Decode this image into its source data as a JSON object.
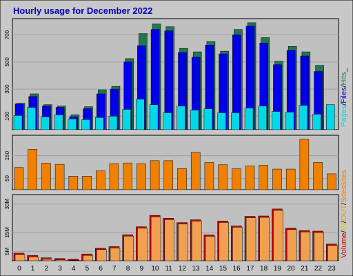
{
  "page": {
    "background": "#c8c8c8",
    "panel_background": "#c0c0c0"
  },
  "colors": {
    "title": "#0000c0",
    "pages": "#00d8e8",
    "files": "#0000e8",
    "hits": "#207850",
    "volume": "#d00000",
    "in": "#d0d000",
    "out": "#e0a000",
    "sites": "#f08000",
    "volume_fill": "#f0a050",
    "bar_outline": "#000000"
  },
  "chart_data": {
    "type": "bar",
    "title": "Hourly usage for December 2022",
    "x_categories": [
      "0",
      "1",
      "2",
      "3",
      "4",
      "5",
      "6",
      "7",
      "8",
      "9",
      "10",
      "11",
      "12",
      "13",
      "14",
      "15",
      "16",
      "17",
      "18",
      "19",
      "20",
      "21",
      "22",
      "23"
    ],
    "charts": [
      {
        "name": "hits-files-pages",
        "ylim": [
          0,
          820
        ],
        "yticks": [
          100,
          300,
          500,
          700
        ],
        "legend": [
          "Pages",
          "/",
          "Files",
          "/",
          "Hits",
          "_"
        ],
        "series": [
          {
            "name": "Hits",
            "values": [
              195,
              265,
              185,
              175,
              110,
              170,
              295,
              320,
              525,
              710,
              780,
              760,
              600,
              575,
              650,
              580,
              740,
              790,
              680,
              505,
              615,
              575,
              475,
              0
            ]
          },
          {
            "name": "Files",
            "values": [
              190,
              245,
              175,
              165,
              95,
              155,
              265,
              300,
              500,
              620,
              740,
              730,
              570,
              535,
              625,
              560,
              700,
              765,
              640,
              480,
              585,
              545,
              430,
              0
            ]
          },
          {
            "name": "Pages",
            "values": [
              105,
              165,
              95,
              110,
              80,
              75,
              90,
              100,
              150,
              225,
              185,
              125,
              175,
              145,
              155,
              125,
              125,
              160,
              175,
              135,
              130,
              180,
              115,
              185
            ]
          }
        ]
      },
      {
        "name": "sites",
        "ylim": [
          0,
          240
        ],
        "yticks": [
          50,
          150
        ],
        "legend": [
          "Sites"
        ],
        "series": [
          {
            "name": "Sites",
            "values": [
              98,
              178,
              117,
              112,
              60,
              60,
              83,
              115,
              118,
              115,
              128,
              128,
              93,
              165,
              120,
              110,
              92,
              105,
              108,
              91,
              91,
              222,
              120,
              70
            ]
          }
        ]
      },
      {
        "name": "volume",
        "ylim": [
          0,
          35
        ],
        "yticks": [
          5,
          15,
          30
        ],
        "ytick_labels": [
          "5M",
          "15M",
          "30M"
        ],
        "legend": [
          "Volume",
          "/",
          "IN",
          "/",
          "OUT",
          "/",
          "Sites"
        ],
        "series": [
          {
            "name": "Volume",
            "values": [
              4.1,
              2.8,
              1.6,
              1.2,
              0.9,
              3.6,
              6.7,
              7.5,
              13.8,
              18.0,
              24.0,
              22.5,
              20.2,
              21.7,
              13.7,
              21.0,
              18.5,
              23.5,
              23.7,
              27.4,
              17.3,
              16.0,
              15.7,
              8.9
            ]
          }
        ]
      }
    ]
  }
}
